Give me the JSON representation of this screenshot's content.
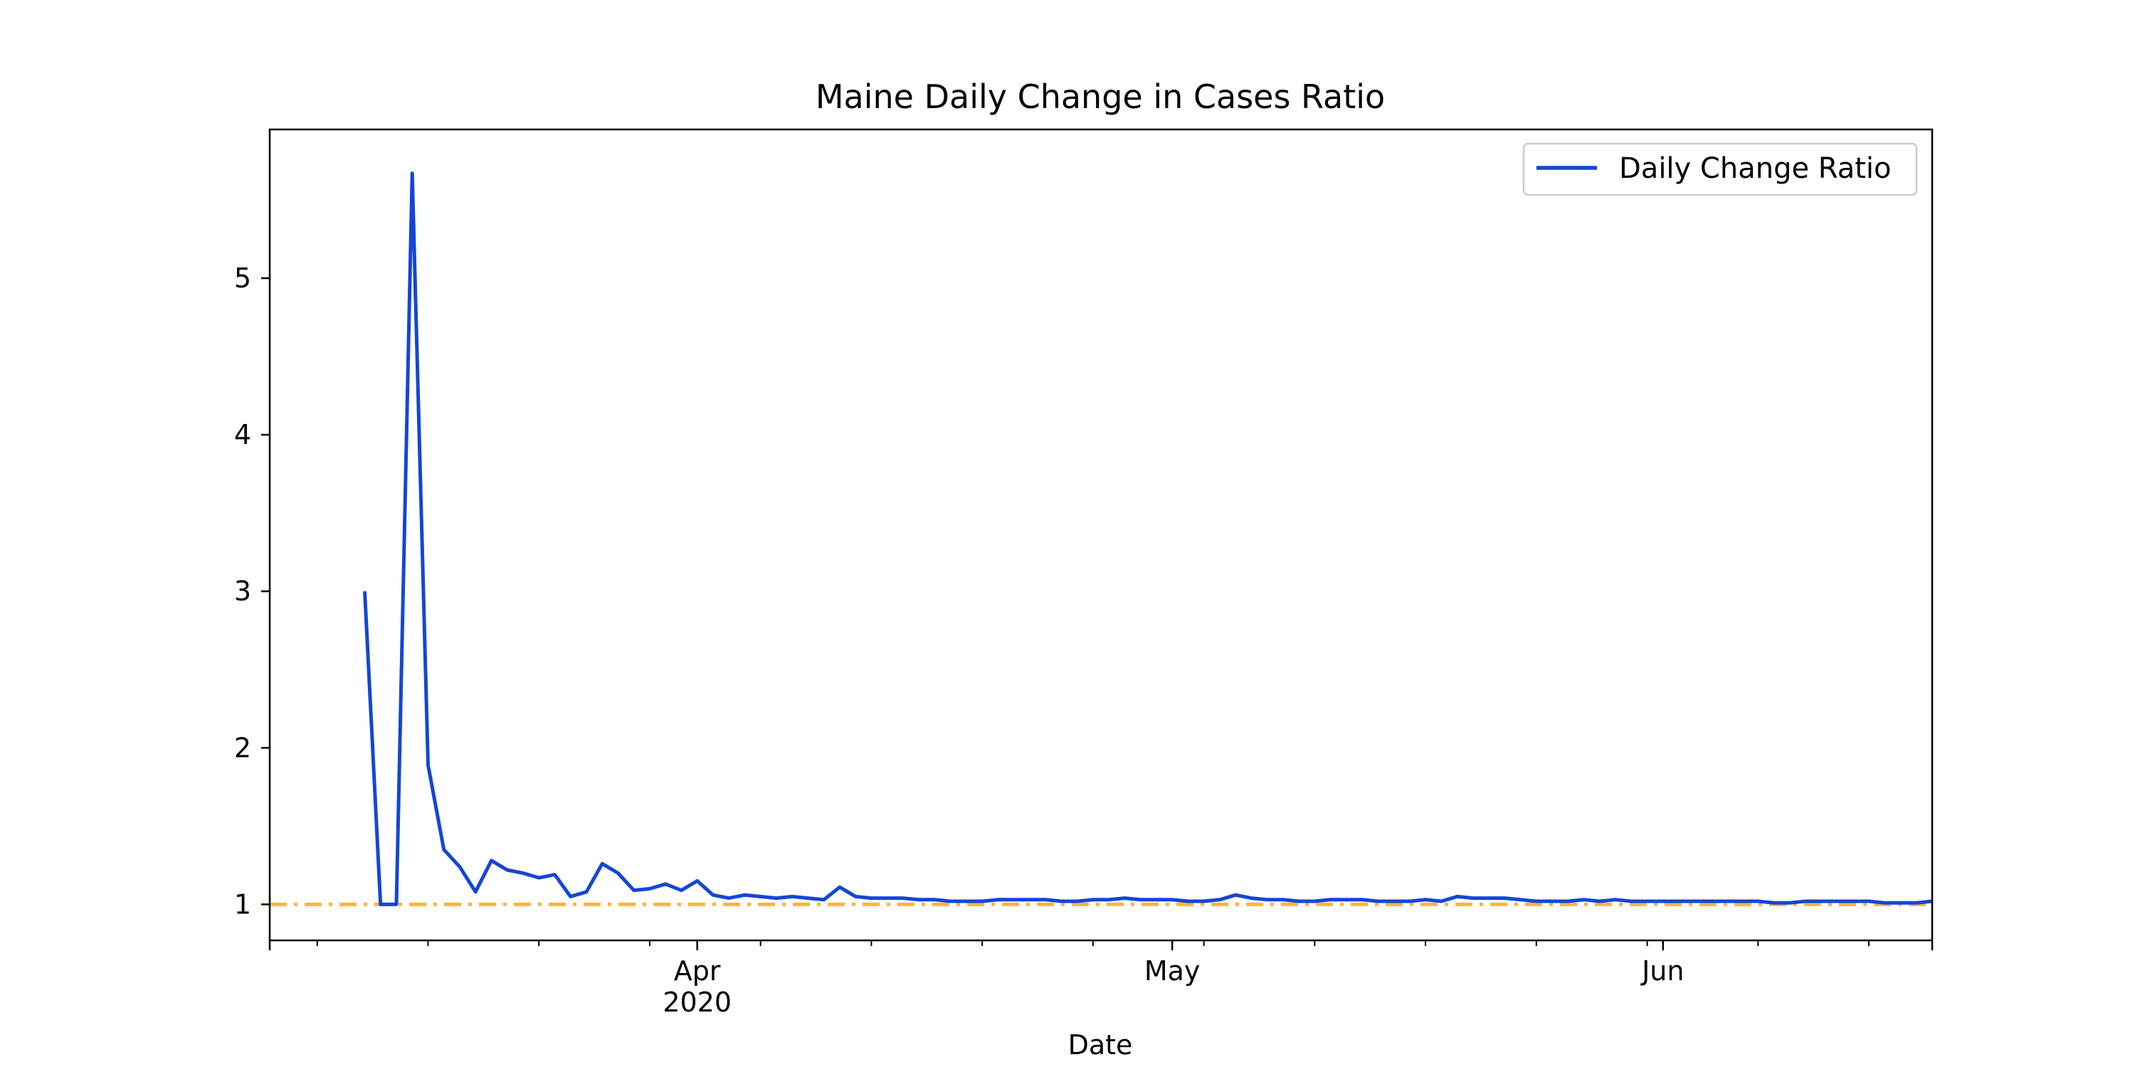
{
  "chart_data": {
    "type": "line",
    "title": "Maine Daily Change in Cases Ratio",
    "xlabel": "Date",
    "ylabel": "",
    "x_range": [
      "2020-03-05",
      "2020-06-18"
    ],
    "ylim": [
      0.77,
      5.95
    ],
    "y_ticks": [
      1,
      2,
      3,
      4,
      5
    ],
    "x_major_ticks": [
      {
        "date": "2020-04-01",
        "label": "Apr",
        "sublabel": "2020"
      },
      {
        "date": "2020-05-01",
        "label": "May",
        "sublabel": ""
      },
      {
        "date": "2020-06-01",
        "label": "Jun",
        "sublabel": ""
      }
    ],
    "x_minor_ticks": [
      "2020-03-08",
      "2020-03-15",
      "2020-03-22",
      "2020-03-29",
      "2020-04-05",
      "2020-04-12",
      "2020-04-19",
      "2020-04-26",
      "2020-05-03",
      "2020-05-10",
      "2020-05-17",
      "2020-05-24",
      "2020-05-31",
      "2020-06-07",
      "2020-06-14"
    ],
    "legend": {
      "position": "top-right",
      "entries": [
        "Daily Change Ratio"
      ]
    },
    "reference_line": {
      "y": 1,
      "style": "dash-dot",
      "color": "#FBB53C"
    },
    "series": [
      {
        "name": "Daily Change Ratio",
        "color": "#1446D6",
        "x": [
          "2020-03-11",
          "2020-03-12",
          "2020-03-13",
          "2020-03-14",
          "2020-03-15",
          "2020-03-16",
          "2020-03-17",
          "2020-03-18",
          "2020-03-19",
          "2020-03-20",
          "2020-03-21",
          "2020-03-22",
          "2020-03-23",
          "2020-03-24",
          "2020-03-25",
          "2020-03-26",
          "2020-03-27",
          "2020-03-28",
          "2020-03-29",
          "2020-03-30",
          "2020-03-31",
          "2020-04-01",
          "2020-04-02",
          "2020-04-03",
          "2020-04-04",
          "2020-04-05",
          "2020-04-06",
          "2020-04-07",
          "2020-04-08",
          "2020-04-09",
          "2020-04-10",
          "2020-04-11",
          "2020-04-12",
          "2020-04-13",
          "2020-04-14",
          "2020-04-15",
          "2020-04-16",
          "2020-04-17",
          "2020-04-18",
          "2020-04-19",
          "2020-04-20",
          "2020-04-21",
          "2020-04-22",
          "2020-04-23",
          "2020-04-24",
          "2020-04-25",
          "2020-04-26",
          "2020-04-27",
          "2020-04-28",
          "2020-04-29",
          "2020-04-30",
          "2020-05-01",
          "2020-05-02",
          "2020-05-03",
          "2020-05-04",
          "2020-05-05",
          "2020-05-06",
          "2020-05-07",
          "2020-05-08",
          "2020-05-09",
          "2020-05-10",
          "2020-05-11",
          "2020-05-12",
          "2020-05-13",
          "2020-05-14",
          "2020-05-15",
          "2020-05-16",
          "2020-05-17",
          "2020-05-18",
          "2020-05-19",
          "2020-05-20",
          "2020-05-21",
          "2020-05-22",
          "2020-05-23",
          "2020-05-24",
          "2020-05-25",
          "2020-05-26",
          "2020-05-27",
          "2020-05-28",
          "2020-05-29",
          "2020-05-30",
          "2020-05-31",
          "2020-06-01",
          "2020-06-02",
          "2020-06-03",
          "2020-06-04",
          "2020-06-05",
          "2020-06-06",
          "2020-06-07",
          "2020-06-08",
          "2020-06-09",
          "2020-06-10",
          "2020-06-11",
          "2020-06-12",
          "2020-06-13",
          "2020-06-14",
          "2020-06-15",
          "2020-06-16",
          "2020-06-17",
          "2020-06-18"
        ],
        "values": [
          3.0,
          1.0,
          1.0,
          5.67,
          1.89,
          1.35,
          1.24,
          1.08,
          1.28,
          1.22,
          1.2,
          1.17,
          1.19,
          1.05,
          1.08,
          1.26,
          1.2,
          1.09,
          1.1,
          1.13,
          1.09,
          1.15,
          1.06,
          1.04,
          1.06,
          1.05,
          1.04,
          1.05,
          1.04,
          1.03,
          1.11,
          1.05,
          1.04,
          1.04,
          1.04,
          1.03,
          1.03,
          1.02,
          1.02,
          1.02,
          1.03,
          1.03,
          1.03,
          1.03,
          1.02,
          1.02,
          1.03,
          1.03,
          1.04,
          1.03,
          1.03,
          1.03,
          1.02,
          1.02,
          1.03,
          1.06,
          1.04,
          1.03,
          1.03,
          1.02,
          1.02,
          1.03,
          1.03,
          1.03,
          1.02,
          1.02,
          1.02,
          1.03,
          1.02,
          1.05,
          1.04,
          1.04,
          1.04,
          1.03,
          1.02,
          1.02,
          1.02,
          1.03,
          1.02,
          1.03,
          1.02,
          1.02,
          1.02,
          1.02,
          1.02,
          1.02,
          1.02,
          1.02,
          1.02,
          1.01,
          1.01,
          1.02,
          1.02,
          1.02,
          1.02,
          1.02,
          1.01,
          1.01,
          1.01,
          1.02
        ]
      }
    ]
  }
}
